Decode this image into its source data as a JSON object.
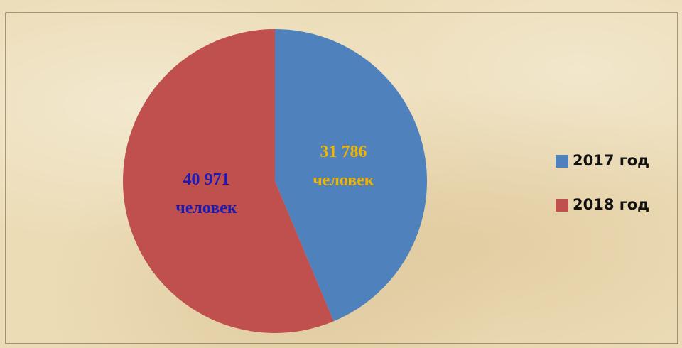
{
  "chart_data": {
    "type": "pie",
    "categories": [
      "2017 год",
      "2018 год"
    ],
    "values": [
      31786,
      40971
    ],
    "value_labels": [
      "31 786",
      "40 971"
    ],
    "value_unit": "человек",
    "colors": [
      "#4f81bd",
      "#c0504d"
    ],
    "label_colors": [
      "#f0b400",
      "#1a1ab8"
    ],
    "legend": "right"
  }
}
